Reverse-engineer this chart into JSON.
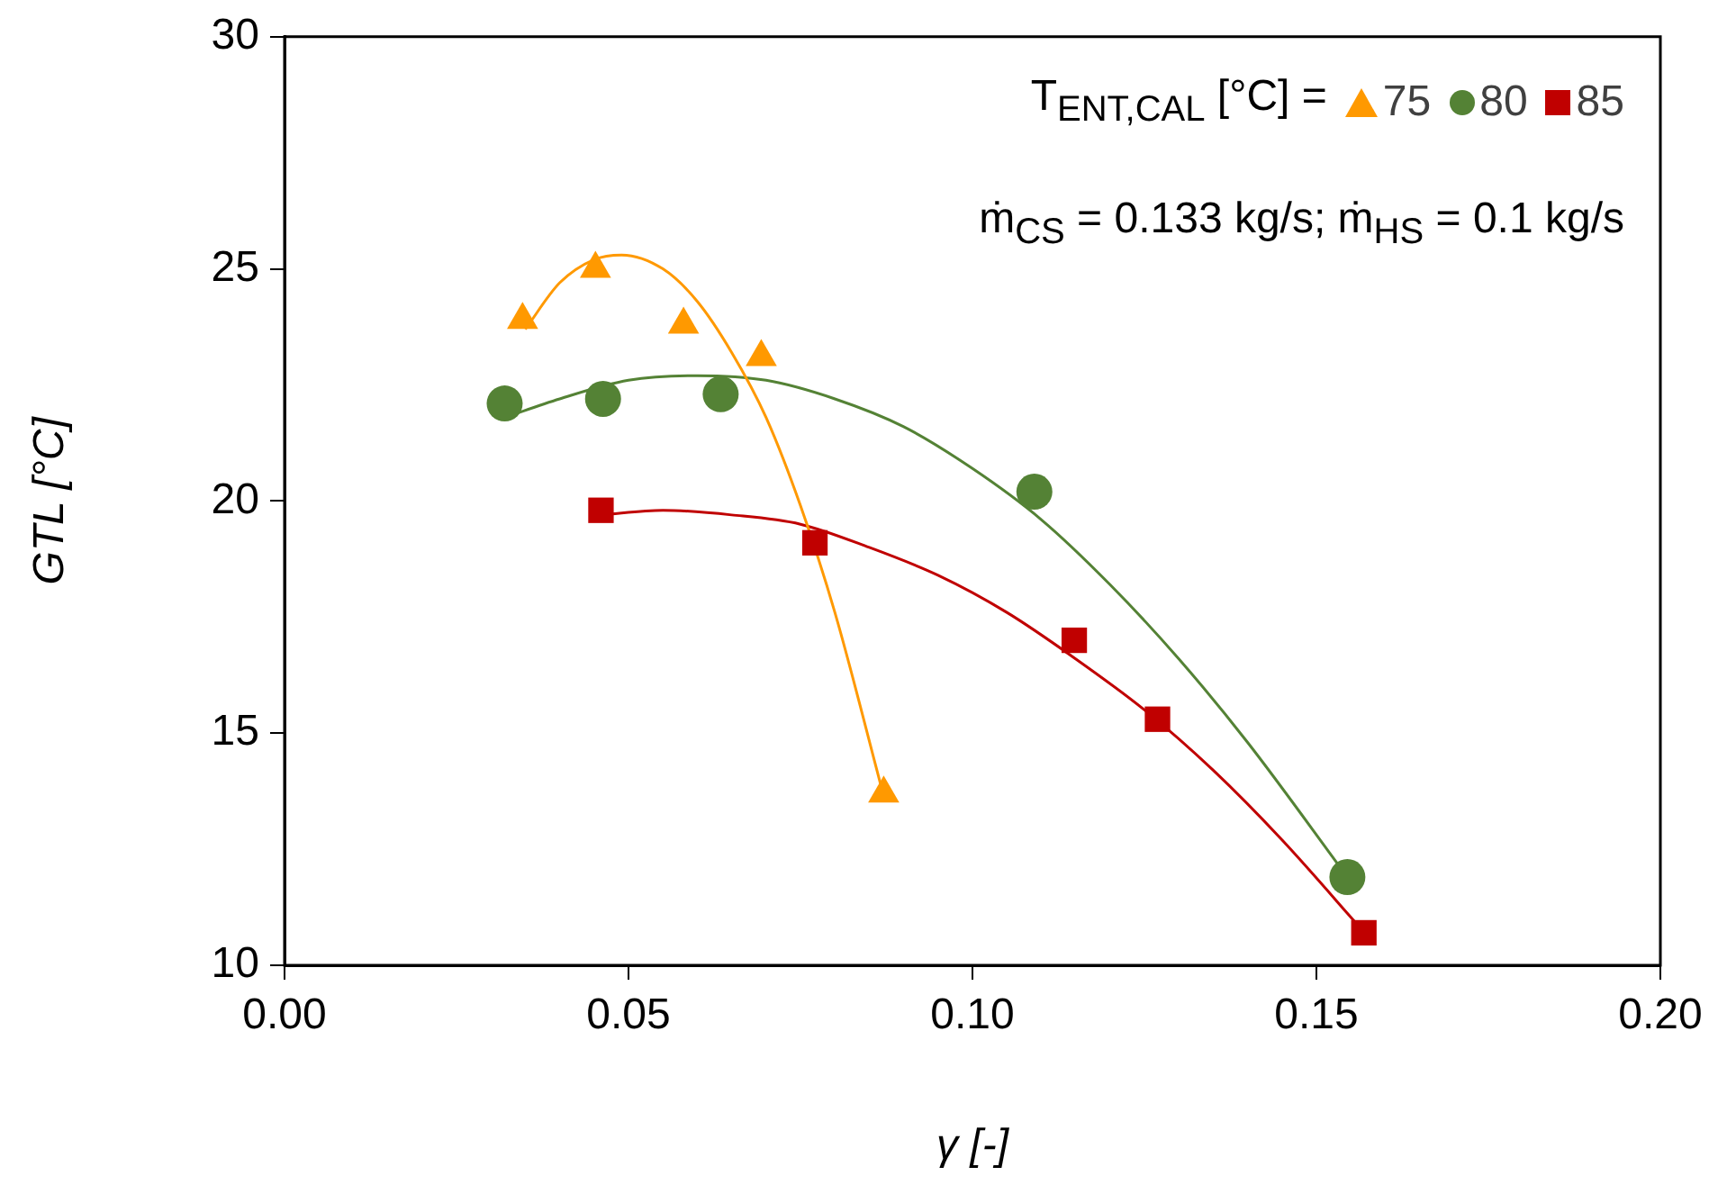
{
  "chart_data": {
    "type": "scatter",
    "xlabel": "γ [-]",
    "ylabel": "GTL [°C]",
    "legend_title": "T$_{ENT,CAL}$ [°C] =",
    "annotations": [
      "ṁ$_{CS}$ = 0.133 kg/s; ṁ$_{HS}$ = 0.1 kg/s"
    ],
    "xlim": [
      0,
      0.2
    ],
    "xticks": [
      {
        "value": 0,
        "label": "0.00"
      },
      {
        "value": 0.05,
        "label": "0.05"
      },
      {
        "value": 0.1,
        "label": "0.10"
      },
      {
        "value": 0.15,
        "label": "0.15"
      },
      {
        "value": 0.2,
        "label": "0.20"
      }
    ],
    "ylim": [
      10,
      30
    ],
    "yticks": [
      10,
      15,
      20,
      25,
      30
    ],
    "grid": false,
    "legend": "top right",
    "series": [
      {
        "name": "75",
        "marker": "triangle",
        "color": "#ff9900",
        "x": [
          0.0346,
          0.0452,
          0.058,
          0.0693,
          0.0871
        ],
        "values": [
          23.9,
          25.0,
          23.8,
          23.1,
          13.7
        ]
      },
      {
        "name": "80",
        "marker": "circle",
        "color": "#548235",
        "x": [
          0.032,
          0.0463,
          0.0634,
          0.109,
          0.1545
        ],
        "values": [
          22.1,
          22.2,
          22.3,
          20.2,
          11.9
        ]
      },
      {
        "name": "85",
        "marker": "square",
        "color": "#c00000",
        "x": [
          0.046,
          0.0771,
          0.1148,
          0.1269,
          0.1569
        ],
        "values": [
          19.8,
          19.1,
          17.0,
          15.3,
          10.7
        ]
      },
      {
        "type": "line",
        "marker": "none",
        "color": "#ff9900",
        "x": [
          0.035,
          0.04,
          0.045,
          0.049,
          0.055,
          0.06,
          0.065,
          0.07,
          0.075,
          0.08,
          0.087
        ],
        "values": [
          23.7,
          24.7,
          25.2,
          25.3,
          25.0,
          24.3,
          23.2,
          21.8,
          19.9,
          17.6,
          13.7
        ]
      },
      {
        "type": "line",
        "marker": "none",
        "color": "#548235",
        "x": [
          0.032,
          0.04,
          0.05,
          0.06,
          0.07,
          0.08,
          0.09,
          0.1,
          0.11,
          0.12,
          0.13,
          0.14,
          0.1545
        ],
        "values": [
          21.8,
          22.2,
          22.6,
          22.7,
          22.6,
          22.2,
          21.6,
          20.7,
          19.6,
          18.2,
          16.6,
          14.8,
          11.9
        ]
      },
      {
        "type": "line",
        "marker": "none",
        "color": "#c00000",
        "x": [
          0.046,
          0.055,
          0.065,
          0.075,
          0.085,
          0.095,
          0.105,
          0.115,
          0.125,
          0.135,
          0.145,
          0.157
        ],
        "values": [
          19.7,
          19.8,
          19.7,
          19.5,
          19.0,
          18.4,
          17.6,
          16.6,
          15.5,
          14.2,
          12.7,
          10.7
        ]
      }
    ]
  }
}
